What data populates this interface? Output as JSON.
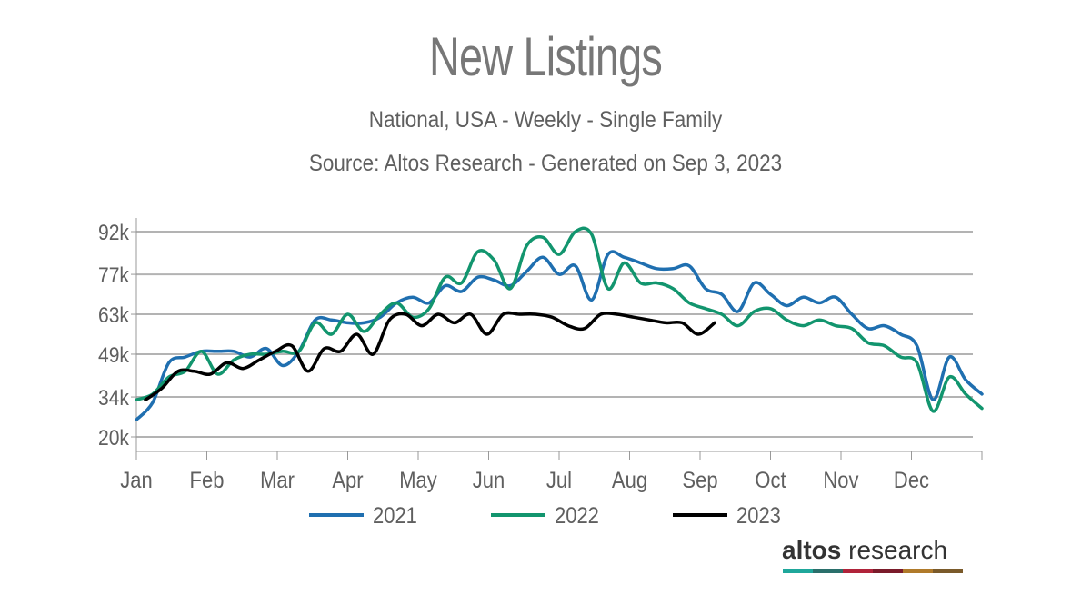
{
  "chart_data": {
    "type": "line",
    "title": "New Listings",
    "subtitle": "National, USA - Weekly - Single Family",
    "source": "Source: Altos Research - Generated on Sep 3, 2023",
    "xlabel": "",
    "ylabel": "",
    "ylim": [
      20,
      92
    ],
    "yticks": [
      20,
      34,
      49,
      63,
      77,
      92
    ],
    "ytick_labels": [
      "20k",
      "34k",
      "49k",
      "63k",
      "77k",
      "92k"
    ],
    "months": [
      "Jan",
      "Feb",
      "Mar",
      "Apr",
      "May",
      "Jun",
      "Jul",
      "Aug",
      "Sep",
      "Oct",
      "Nov",
      "Dec"
    ],
    "series": [
      {
        "name": "2021",
        "color": "#1f6fb0",
        "x": [
          0,
          1,
          2,
          3,
          4,
          5,
          6,
          7,
          8,
          9,
          10,
          11,
          12,
          13,
          14,
          15,
          16,
          17,
          18,
          19,
          20,
          21,
          22,
          23,
          24,
          25,
          26,
          27,
          28,
          29,
          30,
          31,
          32,
          33,
          34,
          35,
          36,
          37,
          38,
          39,
          40,
          41,
          42,
          43,
          44,
          45,
          46,
          47,
          48,
          49,
          50,
          51,
          52
        ],
        "values": [
          26,
          32,
          46,
          48,
          50,
          50,
          50,
          48,
          51,
          45,
          50,
          61,
          61,
          60,
          60,
          62,
          67,
          69,
          67,
          73,
          71,
          76,
          75,
          73,
          78,
          83,
          77,
          80,
          68,
          84,
          83,
          81,
          79,
          79,
          80,
          72,
          70,
          64,
          74,
          70,
          66,
          69,
          67,
          69,
          63,
          58,
          59,
          56,
          52,
          33,
          48,
          40,
          35
        ]
      },
      {
        "name": "2022",
        "color": "#12956e",
        "x": [
          0,
          1,
          2,
          3,
          4,
          5,
          6,
          7,
          8,
          9,
          10,
          11,
          12,
          13,
          14,
          15,
          16,
          17,
          18,
          19,
          20,
          21,
          22,
          23,
          24,
          25,
          26,
          27,
          28,
          29,
          30,
          31,
          32,
          33,
          34,
          35,
          36,
          37,
          38,
          39,
          40,
          41,
          42,
          43,
          44,
          45,
          46,
          47,
          48,
          49,
          50,
          51,
          52
        ],
        "values": [
          33,
          35,
          41,
          43,
          50,
          42,
          47,
          49,
          49,
          50,
          50,
          60,
          56,
          63,
          57,
          63,
          67,
          62,
          65,
          76,
          74,
          85,
          82,
          72,
          87,
          90,
          84,
          92,
          91,
          72,
          81,
          74,
          74,
          72,
          67,
          65,
          63,
          59,
          64,
          65,
          61,
          59,
          61,
          59,
          58,
          53,
          52,
          48,
          46,
          29,
          41,
          35,
          30
        ]
      },
      {
        "name": "2023",
        "color": "#000000",
        "x": [
          0,
          1,
          2,
          3,
          4,
          5,
          6,
          7,
          8,
          9,
          10,
          11,
          12,
          13,
          14,
          15,
          16,
          17,
          18,
          19,
          20,
          21,
          22,
          23,
          24,
          25,
          26,
          27,
          28,
          29,
          30,
          31,
          32,
          33,
          34,
          35
        ],
        "values": [
          33,
          37,
          43,
          43,
          42,
          46,
          44,
          47,
          50,
          52,
          43,
          51,
          50,
          56,
          49,
          61,
          63,
          59,
          63,
          60,
          63,
          56,
          63,
          63,
          63,
          62,
          59,
          58,
          63,
          63,
          62,
          61,
          60,
          60,
          56,
          60
        ]
      }
    ]
  },
  "brand": {
    "name_bold": "altos",
    "name_rest": " research"
  },
  "brand_colors": [
    "#1fa79b",
    "#2a6f6b",
    "#b0233a",
    "#7a1b2a",
    "#b07a2a",
    "#7a5a2a"
  ]
}
